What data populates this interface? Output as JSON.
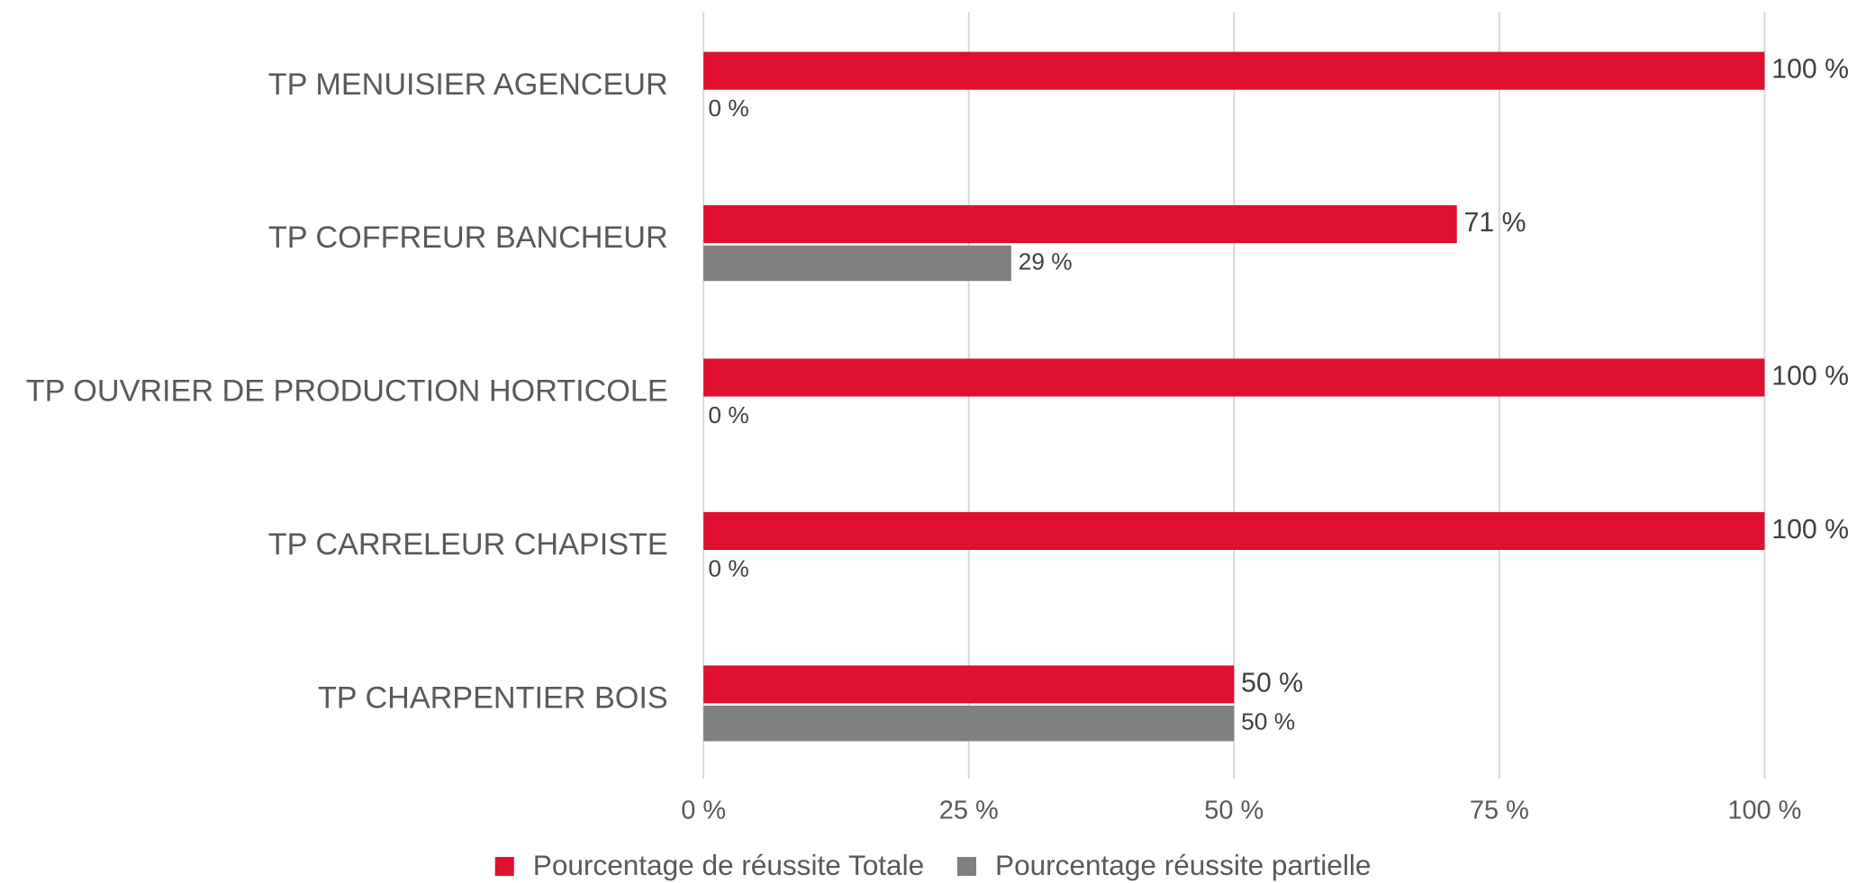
{
  "chart_data": {
    "type": "bar",
    "orientation": "horizontal",
    "categories": [
      "TP MENUISIER AGENCEUR",
      "TP COFFREUR BANCHEUR",
      "TP OUVRIER DE PRODUCTION HORTICOLE",
      "TP CARRELEUR CHAPISTE",
      "TP CHARPENTIER BOIS"
    ],
    "series": [
      {
        "name": "Pourcentage de réussite Totale",
        "color": "#e01030",
        "values": [
          100,
          71,
          100,
          100,
          50
        ],
        "value_labels": [
          "100 %",
          "71 %",
          "100 %",
          "100 %",
          "50 %"
        ]
      },
      {
        "name": "Pourcentage réussite partielle",
        "color": "#808080",
        "values": [
          0,
          29,
          0,
          0,
          50
        ],
        "value_labels": [
          "0 %",
          "29 %",
          "0 %",
          "0 %",
          "50 %"
        ]
      }
    ],
    "xlim": [
      0,
      100
    ],
    "xticks": [
      {
        "value": 0,
        "label": "0 %"
      },
      {
        "value": 25,
        "label": "25 %"
      },
      {
        "value": 50,
        "label": "50 %"
      },
      {
        "value": 75,
        "label": "75 %"
      },
      {
        "value": 100,
        "label": "100 %"
      }
    ],
    "grid": true,
    "legend": "bottom"
  }
}
